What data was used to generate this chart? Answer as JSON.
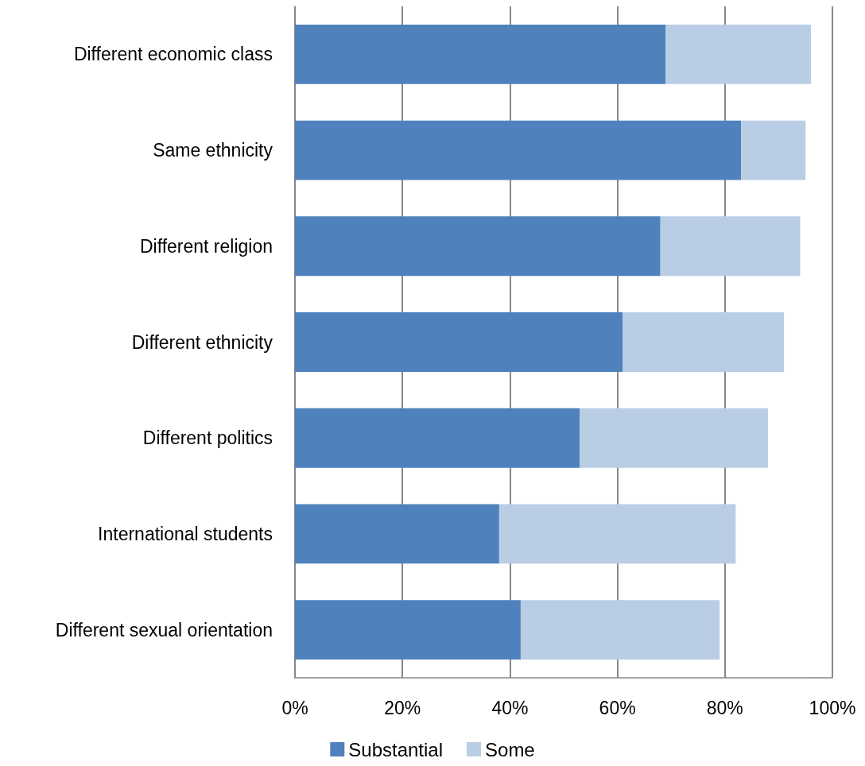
{
  "chart_data": {
    "type": "bar",
    "orientation": "horizontal",
    "stacked": true,
    "categories": [
      "Different economic class",
      "Same ethnicity",
      "Different religion",
      "Different ethnicity",
      "Different politics",
      "International students",
      "Different sexual orientation"
    ],
    "series": [
      {
        "name": "Substantial",
        "color": "#4f81bd",
        "values": [
          69,
          83,
          68,
          61,
          53,
          38,
          42
        ]
      },
      {
        "name": "Some",
        "color": "#b9cde5",
        "values": [
          27,
          12,
          26,
          30,
          35,
          44,
          37
        ]
      }
    ],
    "xlim": [
      0,
      100
    ],
    "xticks": [
      {
        "value": 0,
        "label": "0%"
      },
      {
        "value": 20,
        "label": "20%"
      },
      {
        "value": 40,
        "label": "40%"
      },
      {
        "value": 60,
        "label": "60%"
      },
      {
        "value": 80,
        "label": "80%"
      },
      {
        "value": 100,
        "label": "100%"
      }
    ],
    "grid": "x",
    "legend": "bottom"
  }
}
